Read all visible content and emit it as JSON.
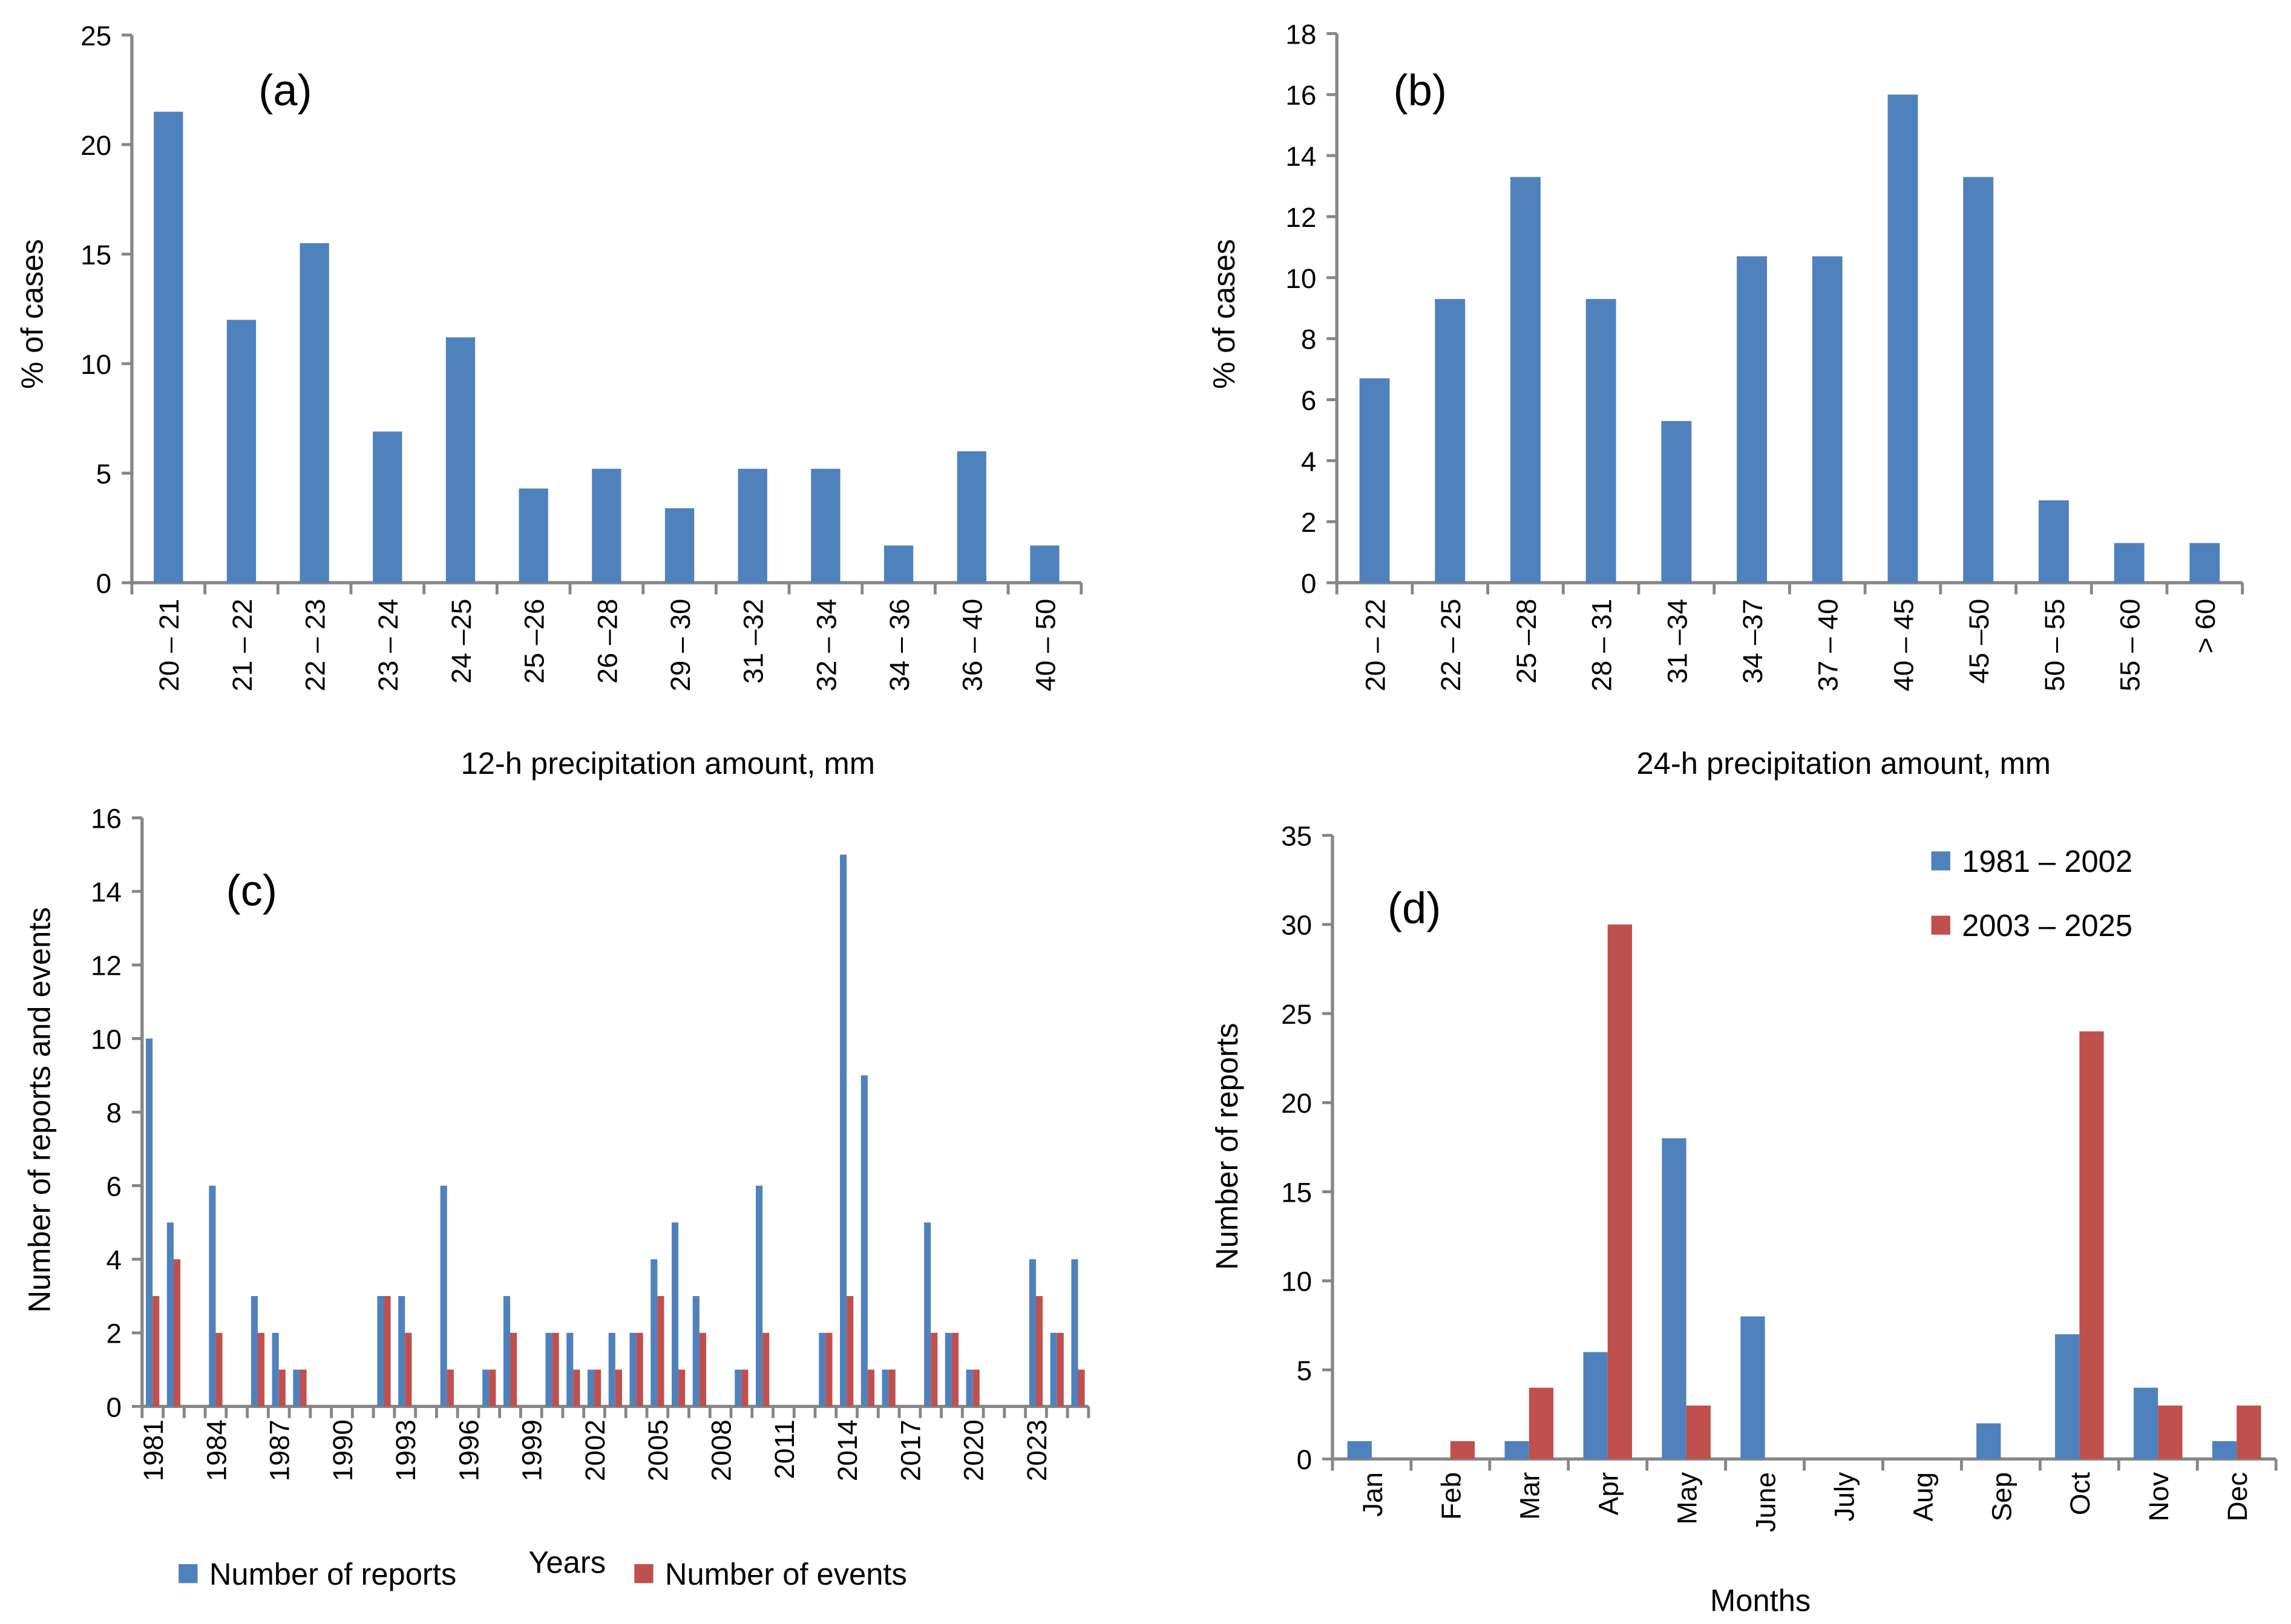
{
  "colors": {
    "blue": "#4F81BD",
    "red": "#C0504D",
    "axis": "#868686"
  },
  "chart_data": [
    {
      "type": "bar",
      "panel_label": "(a)",
      "xlabel": "12-h precipitation amount, mm",
      "ylabel": "% of cases",
      "ylim": [
        0,
        25
      ],
      "yticks": [
        0,
        5,
        10,
        15,
        20,
        25
      ],
      "categories": [
        "20 – 21",
        "21 – 22",
        "22 – 23",
        "23 – 24",
        "24 –25",
        "25 –26",
        "26 –28",
        "29 – 30",
        "31 –32",
        "32 – 34",
        "34 – 36",
        "36 – 40",
        "40 – 50"
      ],
      "series": [
        {
          "name": "% of cases",
          "values": [
            21.5,
            12.0,
            15.5,
            6.9,
            11.2,
            4.3,
            5.2,
            3.4,
            5.2,
            5.2,
            1.7,
            6.0,
            1.7
          ]
        }
      ]
    },
    {
      "type": "bar",
      "panel_label": "(b)",
      "xlabel": "24-h precipitation amount, mm",
      "ylabel": "% of cases",
      "ylim": [
        0,
        18
      ],
      "yticks": [
        0,
        2,
        4,
        6,
        8,
        10,
        12,
        14,
        16,
        18
      ],
      "categories": [
        "20 – 22",
        "22 – 25",
        "25 –28",
        "28 – 31",
        "31 –34",
        "34 –37",
        "37 – 40",
        "40 – 45",
        "45 –50",
        "50 – 55",
        "55 – 60",
        "> 60"
      ],
      "series": [
        {
          "name": "% of cases",
          "values": [
            6.7,
            9.3,
            13.3,
            9.3,
            5.3,
            10.7,
            10.7,
            16.0,
            13.3,
            2.7,
            1.3,
            1.3
          ]
        }
      ]
    },
    {
      "type": "bar",
      "panel_label": "(c)",
      "xlabel": "Years",
      "ylabel": "Number of reports and events",
      "ylim": [
        0,
        16
      ],
      "yticks": [
        0,
        2,
        4,
        6,
        8,
        10,
        12,
        14,
        16
      ],
      "categories": [
        "1981",
        "1982",
        "1983",
        "1984",
        "1985",
        "1986",
        "1987",
        "1988",
        "1989",
        "1990",
        "1991",
        "1992",
        "1993",
        "1994",
        "1995",
        "1996",
        "1997",
        "1998",
        "1999",
        "2000",
        "2001",
        "2002",
        "2003",
        "2004",
        "2005",
        "2006",
        "2007",
        "2008",
        "2009",
        "2010",
        "2011",
        "2012",
        "2013",
        "2014",
        "2015",
        "2016",
        "2017",
        "2018",
        "2019",
        "2020",
        "2021",
        "2022",
        "2023",
        "2024",
        "2025"
      ],
      "tick_every": 3,
      "legend_position": "bottom",
      "series": [
        {
          "name": "Number of reports",
          "color": "blue",
          "values": [
            10,
            5,
            0,
            6,
            0,
            3,
            2,
            1,
            0,
            0,
            0,
            3,
            3,
            0,
            6,
            0,
            1,
            3,
            0,
            2,
            2,
            1,
            2,
            2,
            4,
            5,
            3,
            0,
            1,
            6,
            0,
            0,
            2,
            15,
            9,
            1,
            0,
            5,
            2,
            1,
            0,
            0,
            4,
            2,
            4
          ]
        },
        {
          "name": "Number of events",
          "color": "red",
          "values": [
            3,
            4,
            0,
            2,
            0,
            2,
            1,
            1,
            0,
            0,
            0,
            3,
            2,
            0,
            1,
            0,
            1,
            2,
            0,
            2,
            1,
            1,
            1,
            2,
            3,
            1,
            2,
            0,
            1,
            2,
            0,
            0,
            2,
            3,
            1,
            1,
            0,
            2,
            2,
            1,
            0,
            0,
            3,
            2,
            1
          ]
        }
      ]
    },
    {
      "type": "bar",
      "panel_label": "(d)",
      "xlabel": "Months",
      "ylabel": "Number of reports",
      "ylim": [
        0,
        35
      ],
      "yticks": [
        0,
        5,
        10,
        15,
        20,
        25,
        30,
        35
      ],
      "categories": [
        "Jan",
        "Feb",
        "Mar",
        "Apr",
        "May",
        "June",
        "July",
        "Aug",
        "Sep",
        "Oct",
        "Nov",
        "Dec"
      ],
      "legend_position": "top-right",
      "series": [
        {
          "name": "1981 – 2002",
          "color": "blue",
          "values": [
            1,
            0,
            1,
            6,
            18,
            8,
            0,
            0,
            2,
            7,
            4,
            1
          ]
        },
        {
          "name": "2003 – 2025",
          "color": "red",
          "values": [
            0,
            1,
            4,
            30,
            3,
            0,
            0,
            0,
            0,
            24,
            3,
            3
          ]
        }
      ]
    }
  ]
}
